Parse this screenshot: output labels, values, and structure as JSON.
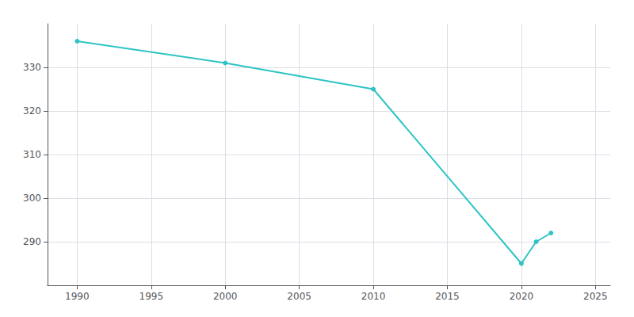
{
  "chart_data": {
    "type": "line",
    "x": [
      1990,
      2000,
      2010,
      2020,
      2021,
      2022
    ],
    "values": [
      336,
      331,
      325,
      285,
      290,
      292
    ],
    "color": "#2EC4C4",
    "marker": "circle",
    "xlim": [
      1988,
      2026
    ],
    "xticks": [
      1990,
      1995,
      2000,
      2005,
      2010,
      2015,
      2020,
      2025
    ],
    "ylim": [
      280,
      340
    ],
    "yticks": [
      290,
      300,
      310,
      320,
      330
    ],
    "grid": true
  }
}
